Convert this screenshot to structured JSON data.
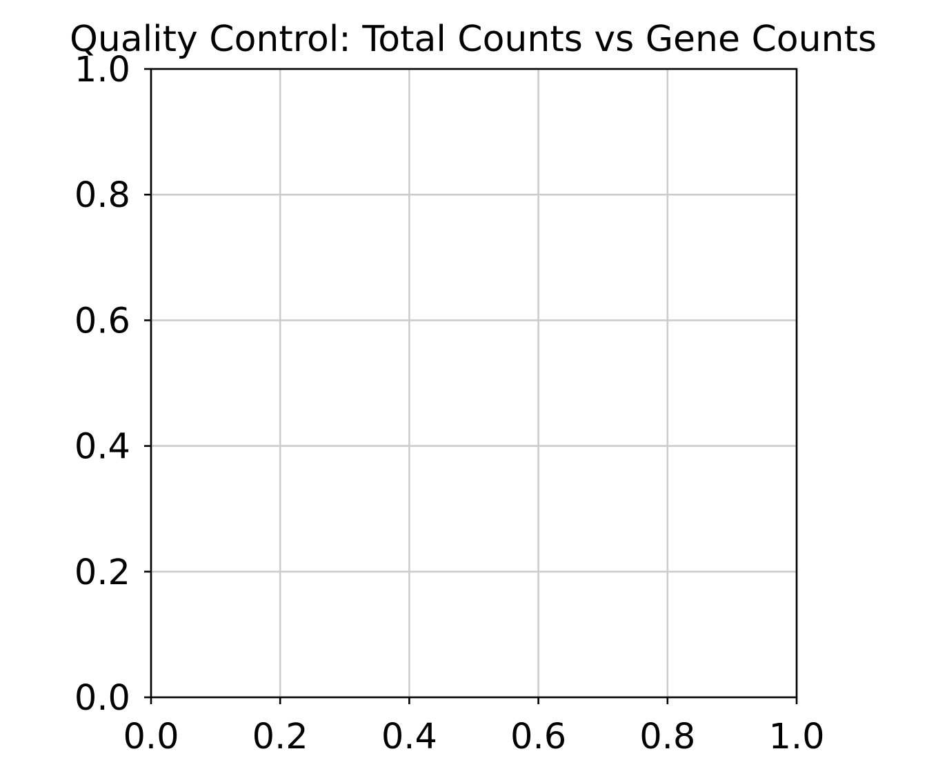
{
  "chart_data": {
    "type": "scatter",
    "title": "Quality Control: Total Counts vs Gene Counts",
    "xlabel": "",
    "ylabel": "",
    "xlim": [
      0,
      1
    ],
    "ylim": [
      0,
      1
    ],
    "xticks": [
      {
        "value": 0.0,
        "label": "0.0"
      },
      {
        "value": 0.2,
        "label": "0.2"
      },
      {
        "value": 0.4,
        "label": "0.4"
      },
      {
        "value": 0.6,
        "label": "0.6"
      },
      {
        "value": 0.8,
        "label": "0.8"
      },
      {
        "value": 1.0,
        "label": "1.0"
      }
    ],
    "yticks": [
      {
        "value": 0.0,
        "label": "0.0"
      },
      {
        "value": 0.2,
        "label": "0.2"
      },
      {
        "value": 0.4,
        "label": "0.4"
      },
      {
        "value": 0.6,
        "label": "0.6"
      },
      {
        "value": 0.8,
        "label": "0.8"
      },
      {
        "value": 1.0,
        "label": "1.0"
      }
    ],
    "grid": true,
    "legend": "none",
    "series": [],
    "colors": {
      "grid": "#cccccc",
      "axis": "#000000",
      "background": "#ffffff"
    }
  }
}
